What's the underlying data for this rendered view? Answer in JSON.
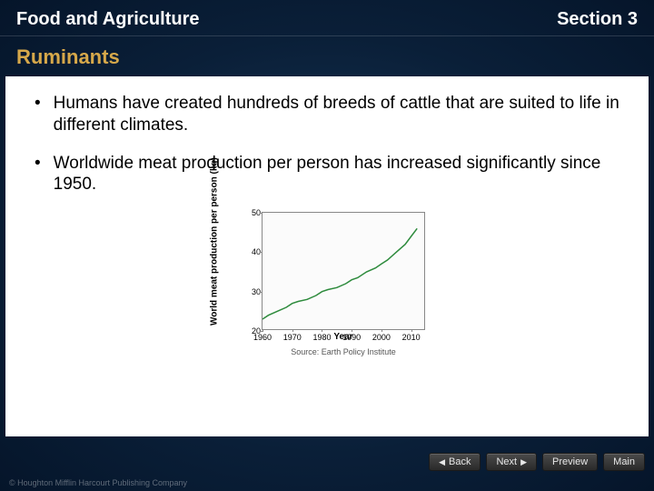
{
  "header": {
    "left": "Food and Agriculture",
    "right": "Section 3"
  },
  "subtitle": "Ruminants",
  "bullets": [
    "Humans have created hundreds of breeds of cattle that are suited to life in different climates.",
    "Worldwide meat production per person has increased significantly since 1950."
  ],
  "chart": {
    "type": "line",
    "width": 180,
    "height": 130,
    "ylabel": "World meat production per person (kg)",
    "xlabel": "Year",
    "source": "Source: Earth Policy Institute",
    "xlim": [
      1960,
      2015
    ],
    "ylim": [
      20,
      50
    ],
    "xticks": [
      1960,
      1970,
      1980,
      1990,
      2000,
      2010
    ],
    "yticks": [
      20,
      30,
      40,
      50
    ],
    "line_color": "#2e8b3d",
    "line_width": 1.5,
    "border_color": "#888888",
    "background_color": "#fbfbfb",
    "tick_fontsize": 9,
    "label_fontsize": 10,
    "x": [
      1960,
      1962,
      1965,
      1968,
      1970,
      1972,
      1975,
      1978,
      1980,
      1982,
      1985,
      1988,
      1990,
      1992,
      1995,
      1998,
      2000,
      2002,
      2005,
      2008,
      2010,
      2012
    ],
    "y": [
      23,
      24,
      25,
      26,
      27,
      27.5,
      28,
      29,
      30,
      30.5,
      31,
      32,
      33,
      33.5,
      35,
      36,
      37,
      38,
      40,
      42,
      44,
      46
    ]
  },
  "nav": {
    "back": "Back",
    "next": "Next",
    "preview": "Preview",
    "main": "Main"
  },
  "copyright": "© Houghton Mifflin Harcourt Publishing Company"
}
